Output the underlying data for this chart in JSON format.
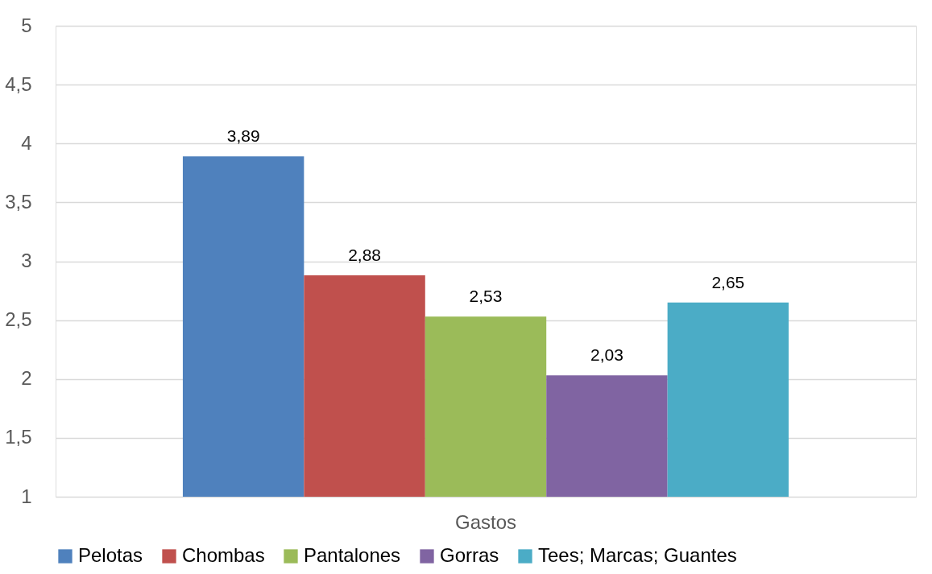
{
  "chart_data": {
    "type": "bar",
    "categories": [
      "Gastos"
    ],
    "series": [
      {
        "name": "Pelotas",
        "color": "#4f81bd",
        "values": [
          3.89
        ],
        "value_labels": [
          "3,89"
        ]
      },
      {
        "name": "Chombas",
        "color": "#c0504d",
        "values": [
          2.88
        ],
        "value_labels": [
          "2,88"
        ]
      },
      {
        "name": "Pantalones",
        "color": "#9bbb59",
        "values": [
          2.53
        ],
        "value_labels": [
          "2,53"
        ]
      },
      {
        "name": "Gorras",
        "color": "#8064a2",
        "values": [
          2.03
        ],
        "value_labels": [
          "2,03"
        ]
      },
      {
        "name": "Tees; Marcas; Guantes",
        "color": "#4bacc6",
        "values": [
          2.65
        ],
        "value_labels": [
          "2,65"
        ]
      }
    ],
    "ylim": [
      1,
      5
    ],
    "yticks": [
      1,
      {
        "value": 1.5,
        "label": "1,5"
      },
      2,
      {
        "value": 2.5,
        "label": "2,5"
      },
      3,
      {
        "value": 3.5,
        "label": "3,5"
      },
      4,
      {
        "value": 4.5,
        "label": "4,5"
      },
      5
    ],
    "grid": "y",
    "legend": "bottom"
  }
}
